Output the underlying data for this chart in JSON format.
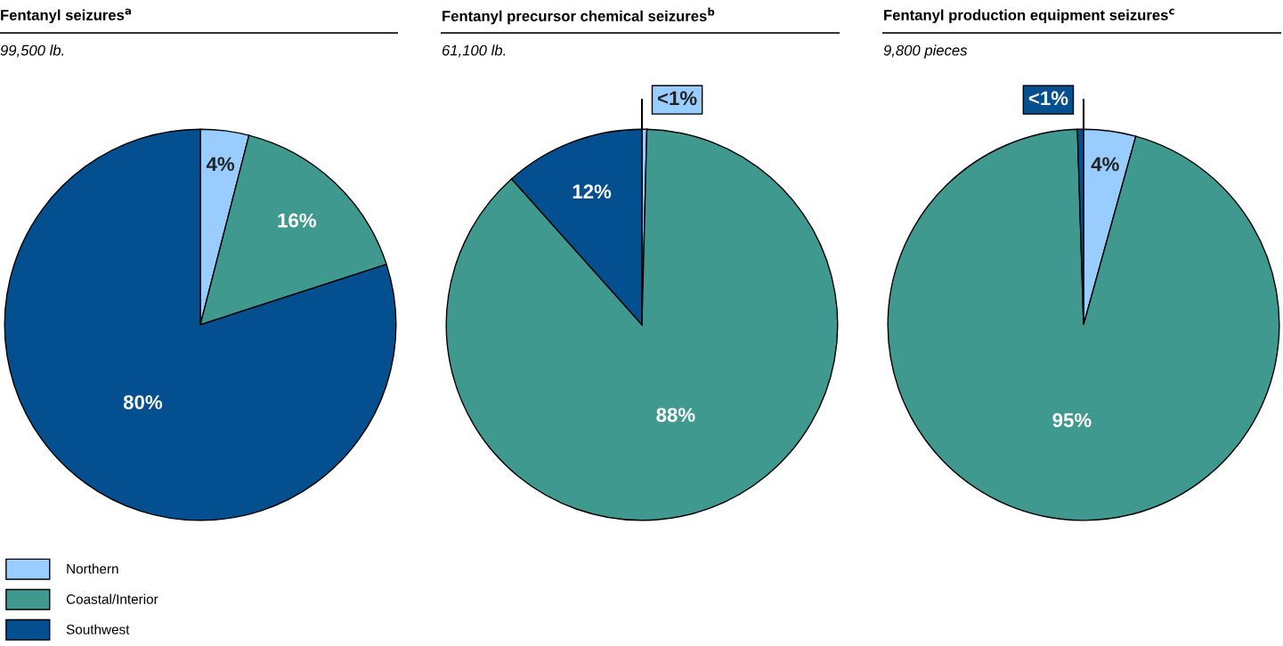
{
  "chart_data": [
    {
      "type": "pie",
      "title": "Fentanyl seizures$^{a}$",
      "subtitle": "99,500 lb.",
      "categories": [
        "Northern",
        "Coastal/Interior",
        "Southwest"
      ],
      "values": [
        4,
        16,
        80
      ],
      "value_labels": [
        "4%",
        "16%",
        "80%"
      ],
      "colors": [
        "#99ccff",
        "#40998f",
        "#044f8f"
      ],
      "legend": "bottom left"
    },
    {
      "type": "pie",
      "title": "Fentanyl precursor chemical seizures$^{b}$",
      "subtitle": "61,100 lb.",
      "values": [
        0.4,
        88,
        11.6
      ],
      "value_labels": [
        "<1%",
        "88%",
        "12%"
      ],
      "colors": [
        "#99ccff",
        "#40998f",
        "#044f8f"
      ]
    },
    {
      "type": "pie",
      "title": "Fentanyl production equipment seizures$^{c}$",
      "subtitle": "9,800 pieces",
      "values": [
        4.3,
        95.2,
        0.5
      ],
      "value_labels": [
        "4%",
        "95%",
        "<1%"
      ],
      "colors": [
        "#99ccff",
        "#40998f",
        "#044f8f"
      ]
    }
  ]
}
